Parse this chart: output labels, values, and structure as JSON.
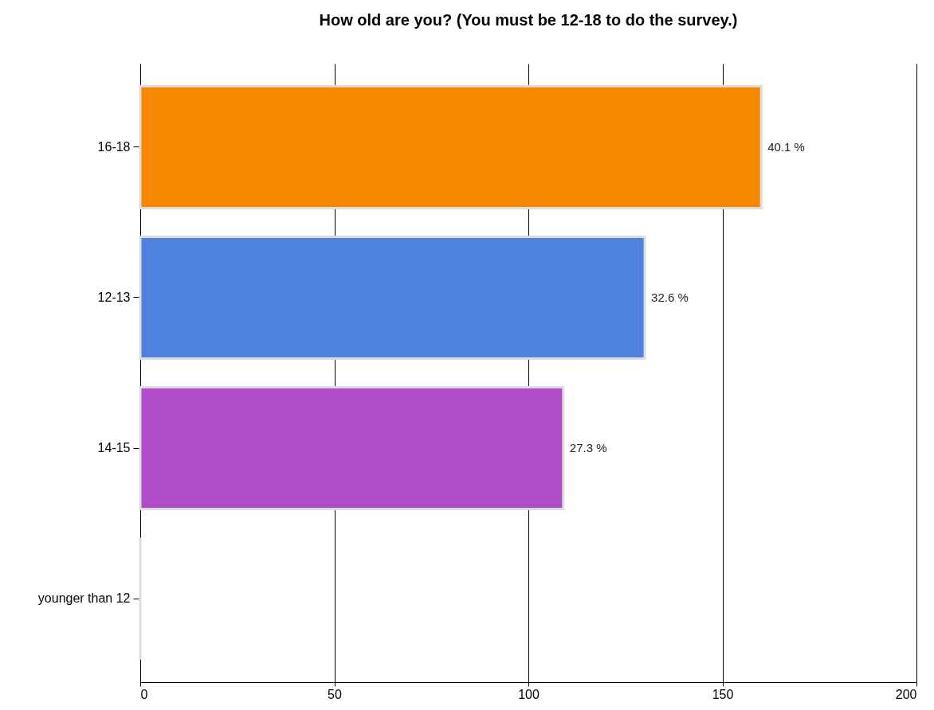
{
  "chart_data": {
    "type": "bar",
    "orientation": "horizontal",
    "title": "How old are you? (You must be 12-18 to do the survey.)",
    "categories": [
      "16-18",
      "12-13",
      "14-15",
      "younger than 12"
    ],
    "values": [
      160,
      130,
      109,
      0
    ],
    "colors": [
      "#f58800",
      "#4f82dc",
      "#b04cc8",
      "#dddddd"
    ],
    "annotations": [
      {
        "text": "40.1 %",
        "x": 160,
        "y": "16-18"
      },
      {
        "text": "32.6 %",
        "x": 130,
        "y": "12-13"
      },
      {
        "text": "27.3 %",
        "x": 109,
        "y": "14-15"
      }
    ],
    "xlim": [
      0,
      200
    ],
    "xticks": [
      0,
      50,
      100,
      150,
      200
    ],
    "grid": "x"
  }
}
